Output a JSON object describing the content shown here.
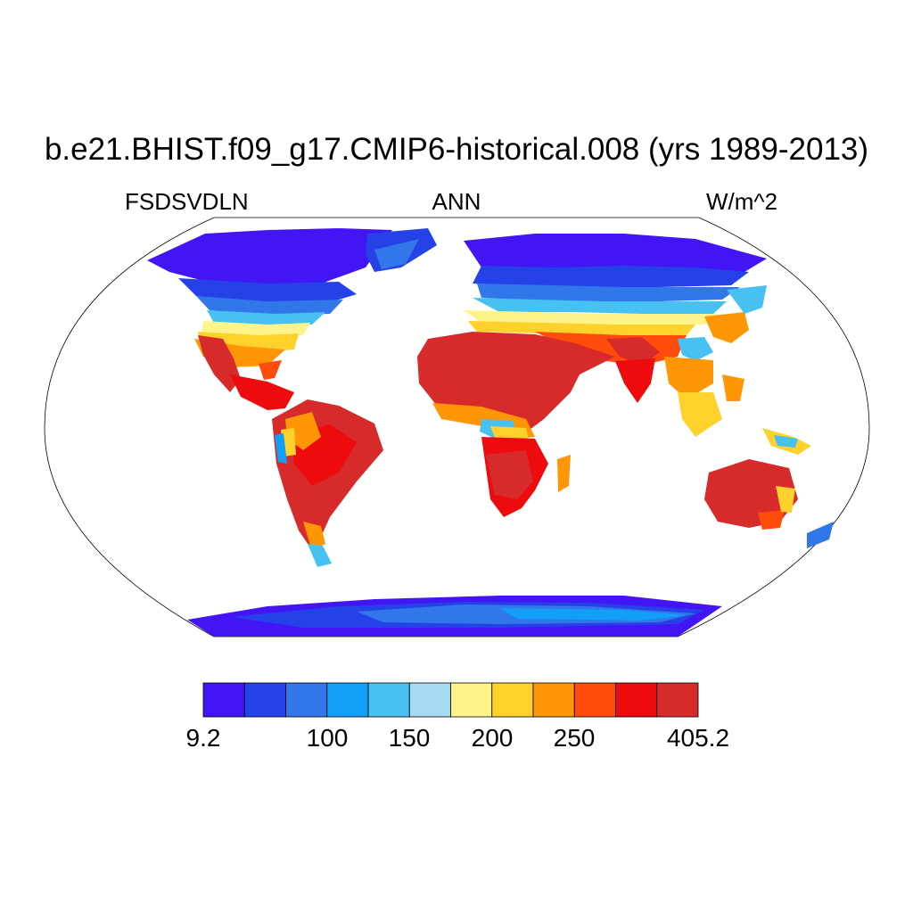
{
  "title": "b.e21.BHIST.f09_g17.CMIP6-historical.008 (yrs 1989-2013)",
  "left_string": "FSDSVDLN",
  "center_string": "ANN",
  "right_string": "W/m^2",
  "colorbar": {
    "colors": [
      "#4215f5",
      "#2541e8",
      "#3277ea",
      "#119ff8",
      "#46c1f2",
      "#a6daf1",
      "#fff48a",
      "#ffd12a",
      "#ff9606",
      "#ff4b0b",
      "#ee0b0e",
      "#d72a2b"
    ],
    "labels": [
      "9.2",
      "100",
      "150",
      "200",
      "250",
      "405.2"
    ]
  }
}
